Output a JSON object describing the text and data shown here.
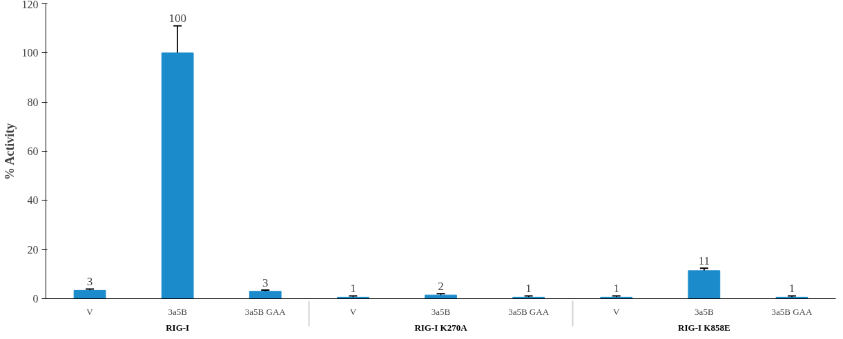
{
  "chart_data": {
    "type": "bar",
    "ylabel": "% Activity",
    "categories": [
      "V",
      "3a5B",
      "3a5B GAA",
      "V",
      "3a5B",
      "3a5B GAA",
      "V",
      "3a5B",
      "3a5B GAA"
    ],
    "values": [
      3.4,
      100,
      3.0,
      0.6,
      1.5,
      0.6,
      0.6,
      11.4,
      0.6
    ],
    "errors": [
      0.5,
      11,
      0.5,
      0.5,
      0.5,
      0.5,
      0.5,
      1.0,
      0.5
    ],
    "value_labels": [
      "3",
      "100",
      "3",
      "1",
      "2",
      "1",
      "1",
      "11",
      "1"
    ],
    "color": "#1b8bcc",
    "annotations": [
      "RIG-I",
      "RIG-I K270A",
      "RIG-I K858E"
    ],
    "ylim": [
      0,
      120
    ],
    "yticks": [
      0,
      20,
      40,
      60,
      80,
      100,
      120
    ],
    "grid": false
  }
}
